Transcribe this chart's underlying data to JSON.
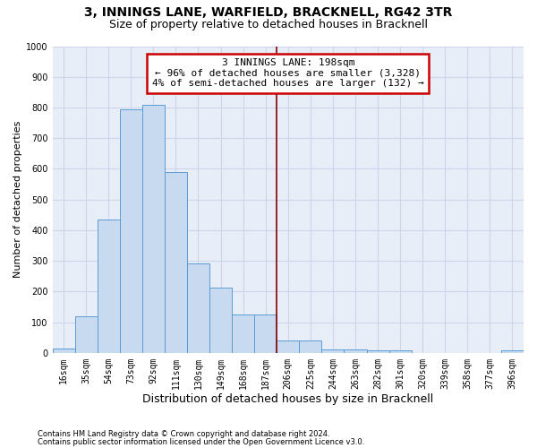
{
  "title": "3, INNINGS LANE, WARFIELD, BRACKNELL, RG42 3TR",
  "subtitle": "Size of property relative to detached houses in Bracknell",
  "xlabel": "Distribution of detached houses by size in Bracknell",
  "ylabel": "Number of detached properties",
  "categories": [
    "16sqm",
    "35sqm",
    "54sqm",
    "73sqm",
    "92sqm",
    "111sqm",
    "130sqm",
    "149sqm",
    "168sqm",
    "187sqm",
    "206sqm",
    "225sqm",
    "244sqm",
    "263sqm",
    "282sqm",
    "301sqm",
    "320sqm",
    "339sqm",
    "358sqm",
    "377sqm",
    "396sqm"
  ],
  "values": [
    15,
    120,
    435,
    795,
    808,
    590,
    293,
    212,
    125,
    125,
    40,
    40,
    12,
    12,
    8,
    8,
    0,
    0,
    0,
    0,
    8
  ],
  "bar_color": "#c8daf0",
  "bar_edge_color": "#5b9bd5",
  "vline_color": "#8b0000",
  "annotation_text": "3 INNINGS LANE: 198sqm\n← 96% of detached houses are smaller (3,328)\n4% of semi-detached houses are larger (132) →",
  "annotation_box_color": "#ffffff",
  "annotation_box_edge_color": "#cc0000",
  "ylim": [
    0,
    1000
  ],
  "yticks": [
    0,
    100,
    200,
    300,
    400,
    500,
    600,
    700,
    800,
    900,
    1000
  ],
  "grid_color": "#cdd5e8",
  "background_color": "#e8eef8",
  "footnote1": "Contains HM Land Registry data © Crown copyright and database right 2024.",
  "footnote2": "Contains public sector information licensed under the Open Government Licence v3.0.",
  "title_fontsize": 10,
  "subtitle_fontsize": 9,
  "axis_label_fontsize": 8,
  "tick_fontsize": 7,
  "annotation_fontsize": 8
}
